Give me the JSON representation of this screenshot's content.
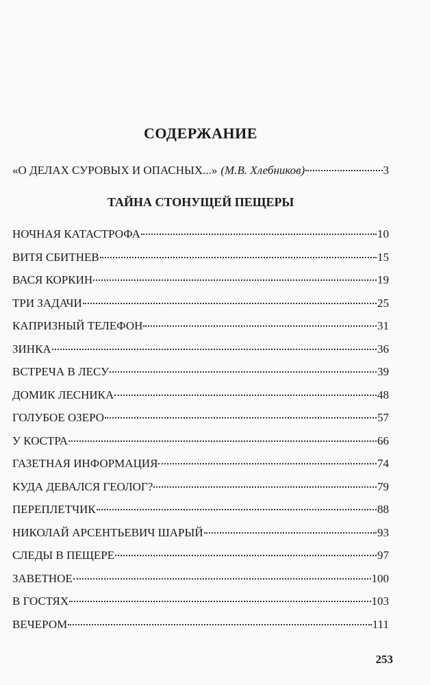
{
  "header": {
    "title": "СОДЕРЖАНИЕ"
  },
  "intro": {
    "text": "«О ДЕЛАХ СУРОВЫХ И ОПАСНЫХ...»",
    "author": "(М.В. Хлебников)",
    "page": 3
  },
  "section": {
    "title": "ТАЙНА СТОНУЩЕЙ ПЕЩЕРЫ",
    "entries": [
      {
        "title": "НОЧНАЯ КАТАСТРОФА",
        "page": 10
      },
      {
        "title": "ВИТЯ СБИТНЕВ",
        "page": 15
      },
      {
        "title": "ВАСЯ КОРКИН",
        "page": 19
      },
      {
        "title": "ТРИ ЗАДАЧИ",
        "page": 25
      },
      {
        "title": "КАПРИЗНЫЙ ТЕЛЕФОН",
        "page": 31
      },
      {
        "title": "ЗИНКА",
        "page": 36
      },
      {
        "title": "ВСТРЕЧА В ЛЕСУ",
        "page": 39
      },
      {
        "title": "ДОМИК ЛЕСНИКА",
        "page": 48
      },
      {
        "title": "ГОЛУБОЕ ОЗЕРО",
        "page": 57
      },
      {
        "title": "У КОСТРА",
        "page": 66
      },
      {
        "title": "ГАЗЕТНАЯ ИНФОРМАЦИЯ",
        "page": 74
      },
      {
        "title": "КУДА ДЕВАЛСЯ ГЕОЛОГ?",
        "page": 79
      },
      {
        "title": "ПЕРЕПЛЕТЧИК",
        "page": 88
      },
      {
        "title": "НИКОЛАЙ АРСЕНТЬЕВИЧ ШАРЫЙ",
        "page": 93
      },
      {
        "title": "СЛЕДЫ В ПЕЩЕРЕ",
        "page": 97
      },
      {
        "title": "ЗАВЕТНОЕ",
        "page": 100
      },
      {
        "title": "В ГОСТЯХ",
        "page": 103
      },
      {
        "title": "ВЕЧЕРОМ",
        "page": 111
      }
    ]
  },
  "footer": {
    "page_number": 253
  }
}
